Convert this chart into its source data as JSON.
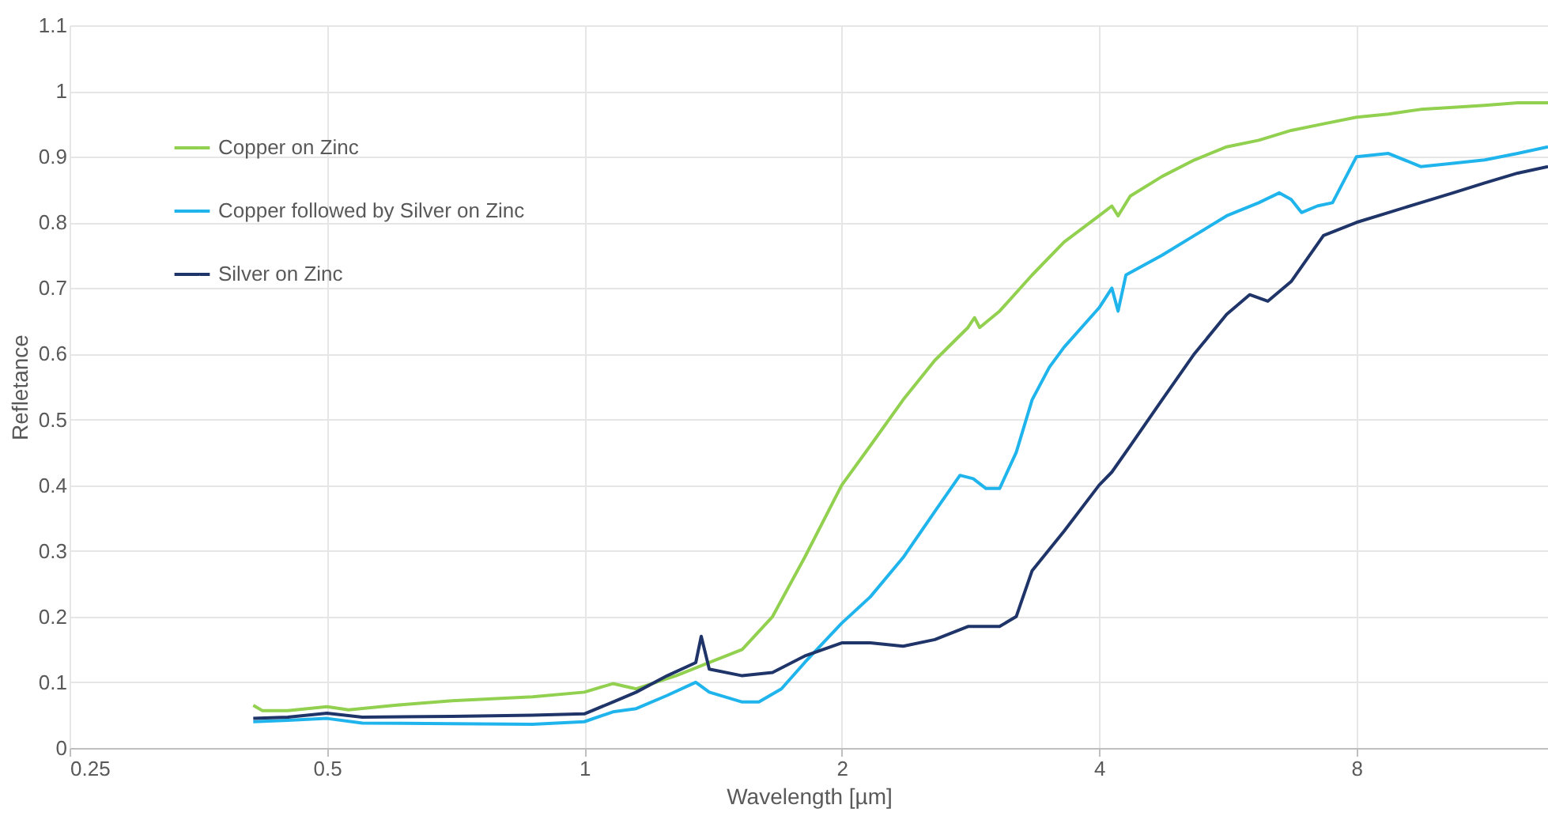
{
  "chart_data": {
    "type": "line",
    "xlabel": "Wavelength [µm]",
    "ylabel": "Refletance",
    "log": "x",
    "grid": true,
    "legend": "top left",
    "line_style": "solid",
    "marker": "none",
    "xlim": [
      0.25,
      13.4
    ],
    "xticks": [
      0.25,
      0.5,
      1,
      2,
      4,
      8
    ],
    "ylim": [
      0,
      1.1
    ],
    "yticks": [
      0,
      0.1,
      0.2,
      0.3,
      0.4,
      0.5,
      0.6,
      0.7,
      0.8,
      0.9,
      1,
      1.1
    ],
    "series": [
      {
        "name": "Copper on Zinc",
        "color": "#92d050",
        "x": [
          0.41,
          0.42,
          0.45,
          0.5,
          0.53,
          0.6,
          0.7,
          0.87,
          1.0,
          1.08,
          1.15,
          1.28,
          1.4,
          1.53,
          1.66,
          1.81,
          2.0,
          2.16,
          2.36,
          2.57,
          2.81,
          2.86,
          2.9,
          3.06,
          3.34,
          3.64,
          4.0,
          4.14,
          4.21,
          4.35,
          4.74,
          5.17,
          5.64,
          6.15,
          6.71,
          7.32,
          8,
          8.72,
          9.51,
          10.38,
          11.3,
          12.35,
          13.4
        ],
        "values": [
          0.065,
          0.057,
          0.057,
          0.063,
          0.058,
          0.065,
          0.072,
          0.078,
          0.085,
          0.098,
          0.09,
          0.11,
          0.13,
          0.15,
          0.2,
          0.29,
          0.4,
          0.46,
          0.53,
          0.59,
          0.64,
          0.655,
          0.64,
          0.665,
          0.72,
          0.77,
          0.81,
          0.825,
          0.81,
          0.84,
          0.87,
          0.895,
          0.915,
          0.925,
          0.94,
          0.95,
          0.96,
          0.965,
          0.972,
          0.975,
          0.978,
          0.982,
          0.982
        ]
      },
      {
        "name": "Copper followed by Silver on Zinc",
        "color": "#1fb4ec",
        "x": [
          0.41,
          0.45,
          0.5,
          0.55,
          0.7,
          0.87,
          1.0,
          1.08,
          1.15,
          1.25,
          1.35,
          1.4,
          1.53,
          1.6,
          1.7,
          1.81,
          2.0,
          2.16,
          2.36,
          2.57,
          2.75,
          2.85,
          2.95,
          3.06,
          3.2,
          3.34,
          3.5,
          3.64,
          4.0,
          4.14,
          4.21,
          4.3,
          4.74,
          5.17,
          5.64,
          6.15,
          6.5,
          6.71,
          6.9,
          7.2,
          7.5,
          8.0,
          8.72,
          9.51,
          10.38,
          11.3,
          12.35,
          13.4
        ],
        "values": [
          0.04,
          0.042,
          0.045,
          0.038,
          0.037,
          0.036,
          0.04,
          0.055,
          0.06,
          0.08,
          0.1,
          0.085,
          0.07,
          0.07,
          0.09,
          0.13,
          0.19,
          0.23,
          0.29,
          0.36,
          0.415,
          0.41,
          0.395,
          0.395,
          0.45,
          0.53,
          0.58,
          0.61,
          0.67,
          0.7,
          0.665,
          0.72,
          0.75,
          0.78,
          0.81,
          0.83,
          0.845,
          0.835,
          0.815,
          0.825,
          0.83,
          0.9,
          0.905,
          0.885,
          0.89,
          0.895,
          0.905,
          0.915
        ]
      },
      {
        "name": "Silver on Zinc",
        "color": "#1f3468",
        "x": [
          0.41,
          0.45,
          0.5,
          0.55,
          0.7,
          0.87,
          1.0,
          1.08,
          1.15,
          1.25,
          1.35,
          1.37,
          1.4,
          1.53,
          1.66,
          1.81,
          2.0,
          2.16,
          2.36,
          2.57,
          2.81,
          3.06,
          3.2,
          3.34,
          3.64,
          4.0,
          4.14,
          4.35,
          4.74,
          5.17,
          5.64,
          6.0,
          6.3,
          6.71,
          7.32,
          8,
          8.72,
          9.51,
          10.38,
          11.3,
          12.35,
          13.4
        ],
        "values": [
          0.045,
          0.047,
          0.053,
          0.047,
          0.048,
          0.05,
          0.052,
          0.07,
          0.085,
          0.11,
          0.13,
          0.17,
          0.12,
          0.11,
          0.115,
          0.14,
          0.16,
          0.16,
          0.155,
          0.165,
          0.185,
          0.185,
          0.2,
          0.27,
          0.33,
          0.4,
          0.42,
          0.46,
          0.53,
          0.6,
          0.66,
          0.69,
          0.68,
          0.71,
          0.78,
          0.8,
          0.815,
          0.83,
          0.845,
          0.86,
          0.875,
          0.885
        ]
      }
    ]
  }
}
